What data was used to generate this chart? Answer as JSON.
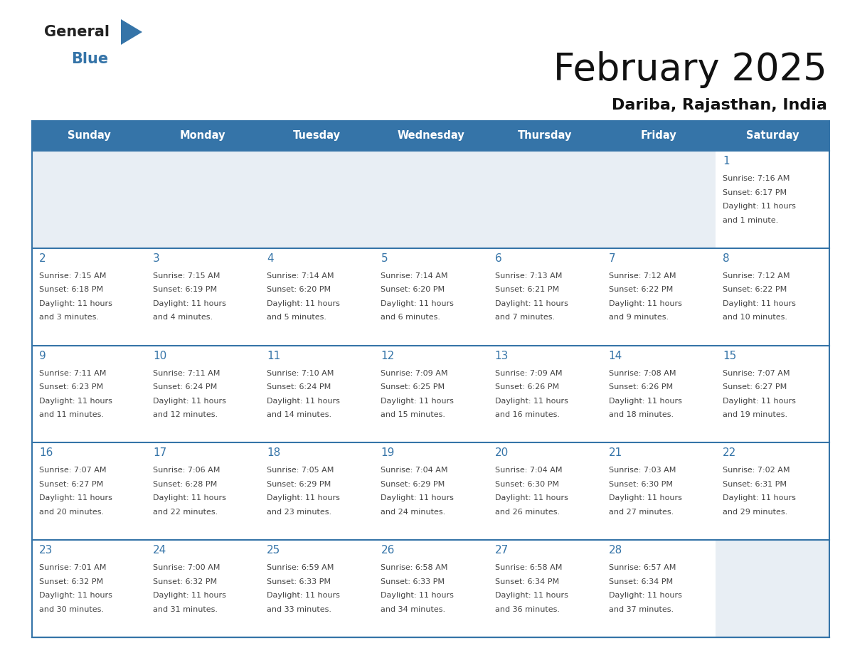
{
  "title": "February 2025",
  "subtitle": "Dariba, Rajasthan, India",
  "days_of_week": [
    "Sunday",
    "Monday",
    "Tuesday",
    "Wednesday",
    "Thursday",
    "Friday",
    "Saturday"
  ],
  "header_bg_color": "#3574a8",
  "header_text_color": "#ffffff",
  "cell_bg_color": "#ffffff",
  "empty_cell_bg_color": "#e8eef4",
  "border_color": "#3574a8",
  "day_num_color": "#3574a8",
  "text_color": "#444444",
  "title_color": "#111111",
  "calendar_data": [
    [
      null,
      null,
      null,
      null,
      null,
      null,
      {
        "day": 1,
        "sunrise": "7:16 AM",
        "sunset": "6:17 PM",
        "daylight": "11 hours and 1 minute."
      }
    ],
    [
      {
        "day": 2,
        "sunrise": "7:15 AM",
        "sunset": "6:18 PM",
        "daylight": "11 hours and 3 minutes."
      },
      {
        "day": 3,
        "sunrise": "7:15 AM",
        "sunset": "6:19 PM",
        "daylight": "11 hours and 4 minutes."
      },
      {
        "day": 4,
        "sunrise": "7:14 AM",
        "sunset": "6:20 PM",
        "daylight": "11 hours and 5 minutes."
      },
      {
        "day": 5,
        "sunrise": "7:14 AM",
        "sunset": "6:20 PM",
        "daylight": "11 hours and 6 minutes."
      },
      {
        "day": 6,
        "sunrise": "7:13 AM",
        "sunset": "6:21 PM",
        "daylight": "11 hours and 7 minutes."
      },
      {
        "day": 7,
        "sunrise": "7:12 AM",
        "sunset": "6:22 PM",
        "daylight": "11 hours and 9 minutes."
      },
      {
        "day": 8,
        "sunrise": "7:12 AM",
        "sunset": "6:22 PM",
        "daylight": "11 hours and 10 minutes."
      }
    ],
    [
      {
        "day": 9,
        "sunrise": "7:11 AM",
        "sunset": "6:23 PM",
        "daylight": "11 hours and 11 minutes."
      },
      {
        "day": 10,
        "sunrise": "7:11 AM",
        "sunset": "6:24 PM",
        "daylight": "11 hours and 12 minutes."
      },
      {
        "day": 11,
        "sunrise": "7:10 AM",
        "sunset": "6:24 PM",
        "daylight": "11 hours and 14 minutes."
      },
      {
        "day": 12,
        "sunrise": "7:09 AM",
        "sunset": "6:25 PM",
        "daylight": "11 hours and 15 minutes."
      },
      {
        "day": 13,
        "sunrise": "7:09 AM",
        "sunset": "6:26 PM",
        "daylight": "11 hours and 16 minutes."
      },
      {
        "day": 14,
        "sunrise": "7:08 AM",
        "sunset": "6:26 PM",
        "daylight": "11 hours and 18 minutes."
      },
      {
        "day": 15,
        "sunrise": "7:07 AM",
        "sunset": "6:27 PM",
        "daylight": "11 hours and 19 minutes."
      }
    ],
    [
      {
        "day": 16,
        "sunrise": "7:07 AM",
        "sunset": "6:27 PM",
        "daylight": "11 hours and 20 minutes."
      },
      {
        "day": 17,
        "sunrise": "7:06 AM",
        "sunset": "6:28 PM",
        "daylight": "11 hours and 22 minutes."
      },
      {
        "day": 18,
        "sunrise": "7:05 AM",
        "sunset": "6:29 PM",
        "daylight": "11 hours and 23 minutes."
      },
      {
        "day": 19,
        "sunrise": "7:04 AM",
        "sunset": "6:29 PM",
        "daylight": "11 hours and 24 minutes."
      },
      {
        "day": 20,
        "sunrise": "7:04 AM",
        "sunset": "6:30 PM",
        "daylight": "11 hours and 26 minutes."
      },
      {
        "day": 21,
        "sunrise": "7:03 AM",
        "sunset": "6:30 PM",
        "daylight": "11 hours and 27 minutes."
      },
      {
        "day": 22,
        "sunrise": "7:02 AM",
        "sunset": "6:31 PM",
        "daylight": "11 hours and 29 minutes."
      }
    ],
    [
      {
        "day": 23,
        "sunrise": "7:01 AM",
        "sunset": "6:32 PM",
        "daylight": "11 hours and 30 minutes."
      },
      {
        "day": 24,
        "sunrise": "7:00 AM",
        "sunset": "6:32 PM",
        "daylight": "11 hours and 31 minutes."
      },
      {
        "day": 25,
        "sunrise": "6:59 AM",
        "sunset": "6:33 PM",
        "daylight": "11 hours and 33 minutes."
      },
      {
        "day": 26,
        "sunrise": "6:58 AM",
        "sunset": "6:33 PM",
        "daylight": "11 hours and 34 minutes."
      },
      {
        "day": 27,
        "sunrise": "6:58 AM",
        "sunset": "6:34 PM",
        "daylight": "11 hours and 36 minutes."
      },
      {
        "day": 28,
        "sunrise": "6:57 AM",
        "sunset": "6:34 PM",
        "daylight": "11 hours and 37 minutes."
      },
      null
    ]
  ]
}
